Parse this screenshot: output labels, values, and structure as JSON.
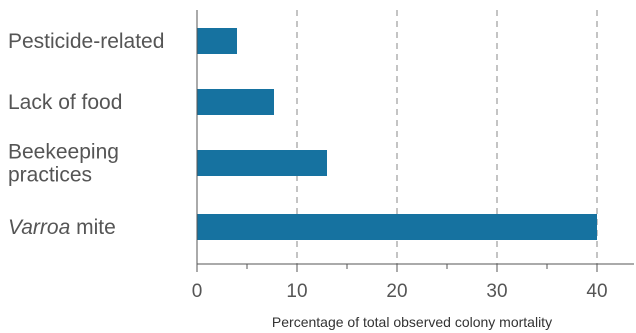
{
  "chart_data": {
    "type": "bar",
    "orientation": "horizontal",
    "categories": [
      {
        "label": "Pesticide-related",
        "label_lines": [
          "Pesticide-related"
        ],
        "italic_prefix": ""
      },
      {
        "label": "Lack of food",
        "label_lines": [
          "Lack of food"
        ],
        "italic_prefix": ""
      },
      {
        "label": "Beekeeping practices",
        "label_lines": [
          "Beekeeping",
          "practices"
        ],
        "italic_prefix": ""
      },
      {
        "label": "Varroa mite",
        "label_lines": [
          "mite"
        ],
        "italic_prefix": "Varroa"
      }
    ],
    "values": [
      4,
      7.7,
      13,
      40
    ],
    "xlabel": "Percentage of total observed colony mortality",
    "xlim": [
      0,
      44
    ],
    "xticks": [
      0,
      10,
      20,
      30,
      40
    ],
    "minor_ticks": [
      5,
      15,
      25,
      35
    ],
    "grid": "vertical-dashed",
    "bar_color": "#1672a0"
  }
}
